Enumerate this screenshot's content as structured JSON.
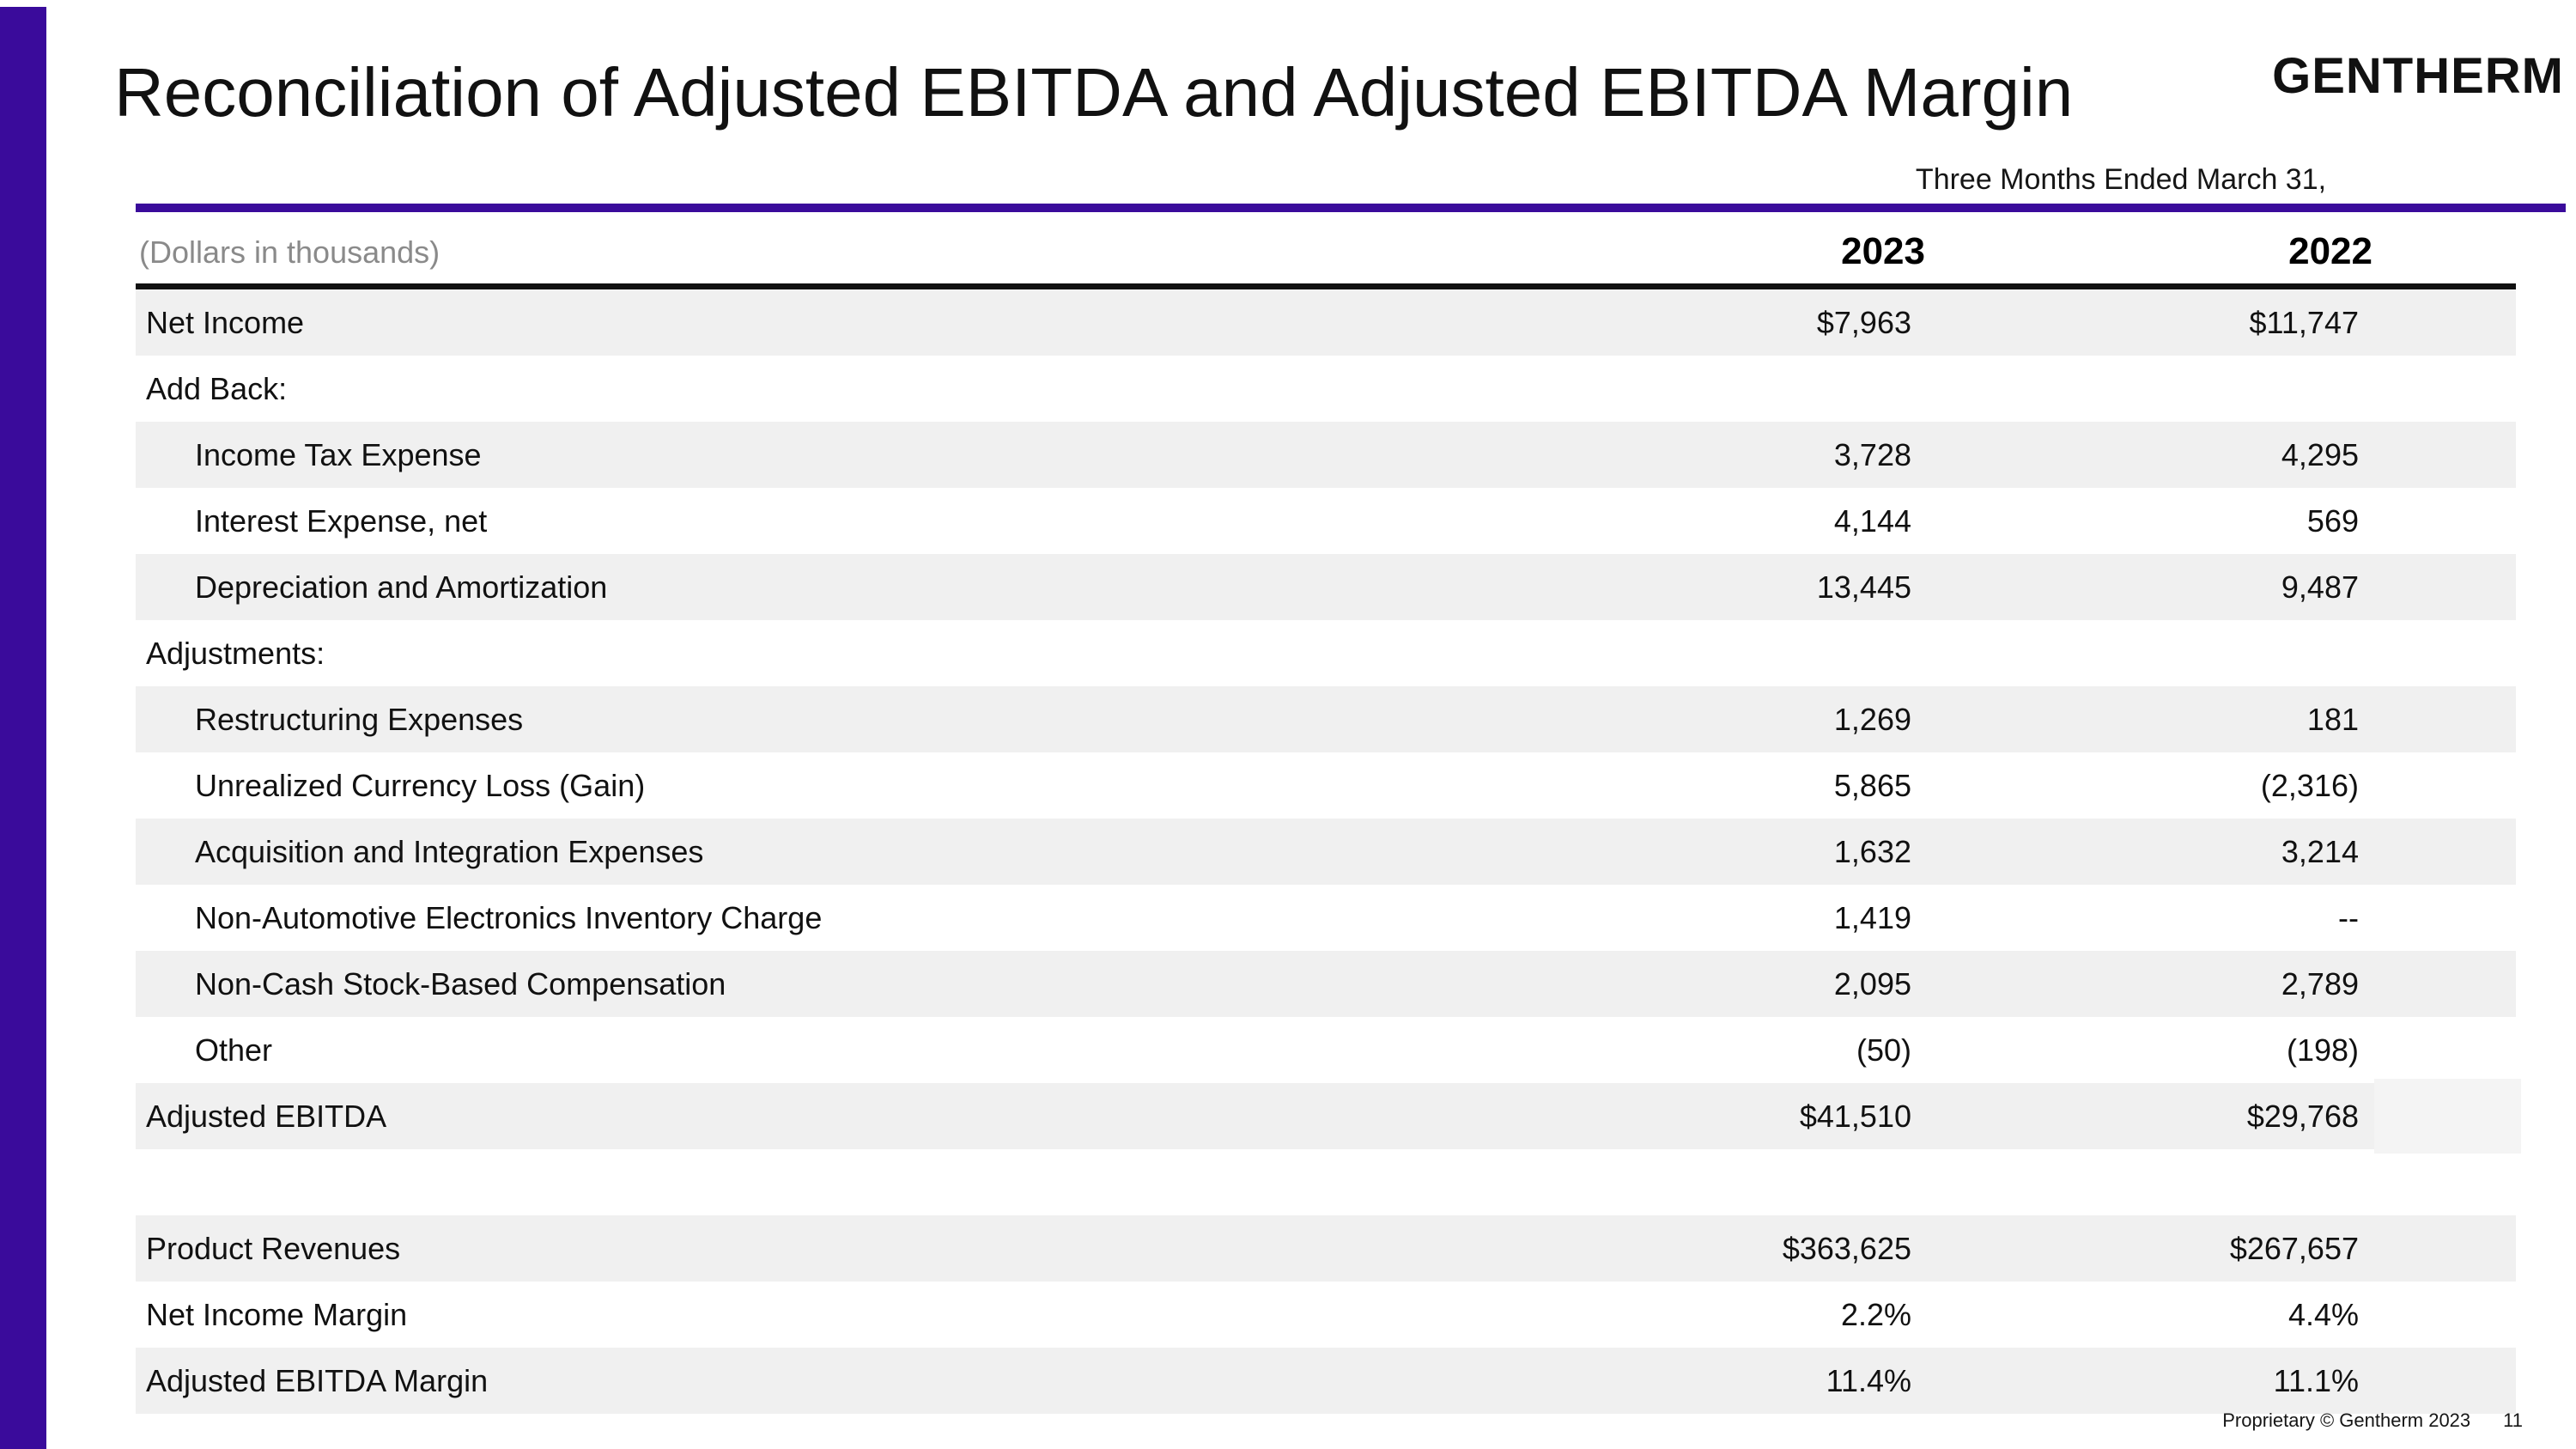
{
  "page": {
    "title": "Reconciliation of Adjusted EBITDA and Adjusted EBITDA Margin",
    "logo_text": "GENTHERM",
    "period_header": "Three Months Ended March 31,",
    "units_note": "(Dollars in thousands)",
    "column_headers": {
      "col_2023": "2023",
      "col_2022": "2022"
    },
    "footer": {
      "proprietary": "Proprietary © Gentherm 2023",
      "page_number": "11"
    }
  },
  "colors": {
    "accent_purple": "#3A0B9B",
    "row_shade": "#F0F0F0",
    "muted_gray_text": "#8A8A8A"
  },
  "table": {
    "rows": [
      {
        "label": "Net Income",
        "v2023": "$7,963",
        "v2022": "$11,747"
      },
      {
        "label": "Add Back:",
        "v2023": "",
        "v2022": ""
      },
      {
        "label": "Income Tax Expense",
        "v2023": "3,728",
        "v2022": "4,295"
      },
      {
        "label": "Interest Expense, net",
        "v2023": "4,144",
        "v2022": "569"
      },
      {
        "label": "Depreciation and Amortization",
        "v2023": "13,445",
        "v2022": "9,487"
      },
      {
        "label": "Adjustments:",
        "v2023": "",
        "v2022": ""
      },
      {
        "label": "Restructuring Expenses",
        "v2023": "1,269",
        "v2022": "181"
      },
      {
        "label": "Unrealized Currency Loss (Gain)",
        "v2023": "5,865",
        "v2022": "(2,316)"
      },
      {
        "label": "Acquisition and Integration Expenses",
        "v2023": "1,632",
        "v2022": "3,214"
      },
      {
        "label": "Non-Automotive Electronics Inventory Charge",
        "v2023": "1,419",
        "v2022": "--"
      },
      {
        "label": "Non-Cash Stock-Based Compensation",
        "v2023": "2,095",
        "v2022": "2,789"
      },
      {
        "label": "Other",
        "v2023": "(50)",
        "v2022": "(198)"
      },
      {
        "label": "Adjusted EBITDA",
        "v2023": "$41,510",
        "v2022": "$29,768"
      },
      {
        "label": "Product Revenues",
        "v2023": "$363,625",
        "v2022": "$267,657"
      },
      {
        "label": "Net Income Margin",
        "v2023": "2.2%",
        "v2022": "4.4%"
      },
      {
        "label": "Adjusted EBITDA Margin",
        "v2023": "11.4%",
        "v2022": "11.1%"
      }
    ]
  }
}
